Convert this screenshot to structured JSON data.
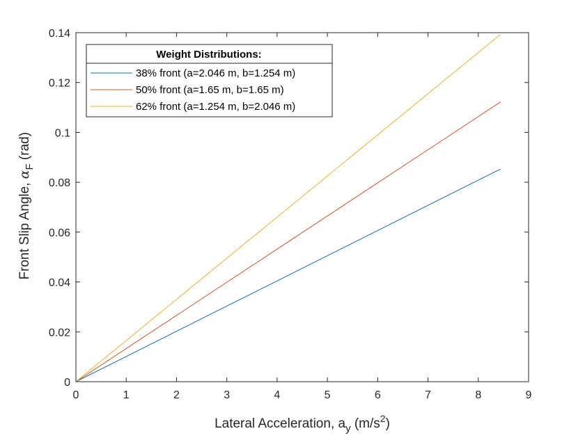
{
  "chart_data": {
    "type": "line",
    "xlabel": {
      "main": "Lateral Acceleration, a",
      "sub": "y",
      "unit_prefix": " (m/s",
      "sup": "2",
      "unit_suffix": ")"
    },
    "ylabel": {
      "main": "Front Slip Angle, ",
      "greek": "α",
      "sub": "F",
      "unit": " (rad)"
    },
    "xlim": [
      0,
      9
    ],
    "ylim": [
      0,
      0.14
    ],
    "xticks": [
      0,
      1,
      2,
      3,
      4,
      5,
      6,
      7,
      8,
      9
    ],
    "yticks": [
      0,
      0.02,
      0.04,
      0.06,
      0.08,
      0.1,
      0.12,
      0.14
    ],
    "ytick_labels": [
      "0",
      "0.02",
      "0.04",
      "0.06",
      "0.08",
      "0.1",
      "0.12",
      "0.14"
    ],
    "grid": false,
    "legend": {
      "title": "Weight Distributions:",
      "placement": "top-left"
    },
    "series": [
      {
        "name": "38% front (a=2.046 m, b=1.254 m)",
        "color": "#0072BD",
        "x": [
          0,
          8.44
        ],
        "y": [
          0,
          0.0853
        ]
      },
      {
        "name": "50% front (a=1.65 m, b=1.65 m)",
        "color": "#D95319",
        "x": [
          0,
          8.44
        ],
        "y": [
          0,
          0.1122
        ]
      },
      {
        "name": "62% front (a=1.254 m, b=2.046 m)",
        "color": "#EDB120",
        "x": [
          0,
          8.44
        ],
        "y": [
          0,
          0.1393
        ]
      }
    ]
  }
}
